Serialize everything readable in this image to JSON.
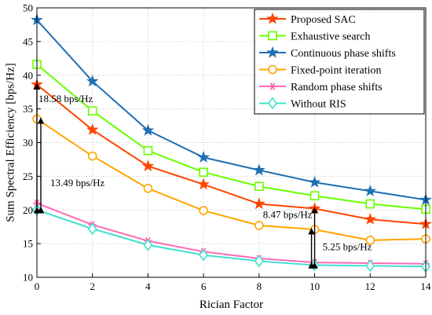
{
  "chart_data": {
    "type": "line",
    "xlabel": "Rician Factor",
    "ylabel": "Sum Spectral Efficiency [bps/Hz]",
    "xlim": [
      0,
      14
    ],
    "ylim": [
      10,
      50
    ],
    "xticks": [
      0,
      2,
      4,
      6,
      8,
      10,
      12,
      14
    ],
    "yticks": [
      10,
      15,
      20,
      25,
      30,
      35,
      40,
      45,
      50
    ],
    "grid": true,
    "legend_position": "top-right",
    "x": [
      0,
      2,
      4,
      6,
      8,
      10,
      12,
      14
    ],
    "series": [
      {
        "name": "Proposed SAC",
        "color": "#ff4500",
        "marker": "star",
        "values": [
          38.6,
          31.9,
          26.5,
          23.8,
          20.9,
          20.2,
          18.6,
          17.9
        ]
      },
      {
        "name": "Exhaustive search",
        "color": "#66ff00",
        "marker": "square",
        "values": [
          41.6,
          34.7,
          28.8,
          25.6,
          23.5,
          22.1,
          20.9,
          20.1
        ]
      },
      {
        "name": "Continuous phase shifts",
        "color": "#1f6fb4",
        "marker": "star",
        "values": [
          48.2,
          39.1,
          31.8,
          27.8,
          25.9,
          24.1,
          22.8,
          21.5
        ]
      },
      {
        "name": "Fixed-point iteration",
        "color": "#ffa500",
        "marker": "circle",
        "values": [
          33.5,
          28.0,
          23.2,
          19.9,
          17.7,
          17.1,
          15.5,
          15.7
        ]
      },
      {
        "name": "Random phase shifts",
        "color": "#ff69b4",
        "marker": "asterisk",
        "values": [
          21.0,
          17.8,
          15.4,
          13.8,
          12.8,
          12.2,
          12.1,
          12.0
        ]
      },
      {
        "name": "Without RIS",
        "color": "#40e0d0",
        "marker": "diamond",
        "values": [
          20.0,
          17.2,
          14.8,
          13.3,
          12.4,
          11.8,
          11.7,
          11.6
        ]
      }
    ],
    "annotations": [
      {
        "text": "18.58 bps/Hz",
        "x": 0,
        "y_from": 20.0,
        "y_to": 38.6
      },
      {
        "text": "13.49 bps/Hz",
        "x": 0,
        "y_from": 20.0,
        "y_to": 33.5
      },
      {
        "text": "8.47 bps/Hz",
        "x": 10,
        "y_from": 11.8,
        "y_to": 20.2
      },
      {
        "text": "5.25 bps/Hz",
        "x": 10,
        "y_from": 11.8,
        "y_to": 17.1
      }
    ]
  }
}
